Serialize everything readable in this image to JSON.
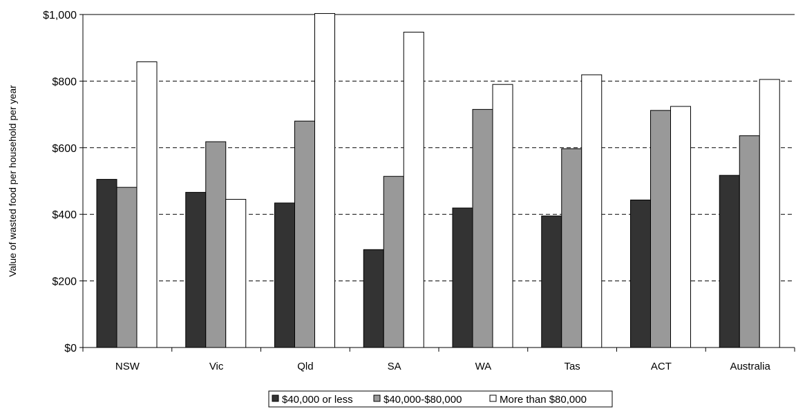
{
  "chart_data": {
    "type": "bar",
    "categories": [
      "NSW",
      "Vic",
      "Qld",
      "SA",
      "WA",
      "Tas",
      "ACT",
      "Australia"
    ],
    "series": [
      {
        "name": "$40,000 or less",
        "color": "#333333",
        "values": [
          505,
          466,
          434,
          294,
          419,
          395,
          443,
          517
        ]
      },
      {
        "name": "$40,000-$80,000",
        "color": "#999999",
        "values": [
          481,
          618,
          680,
          514,
          715,
          597,
          712,
          636
        ]
      },
      {
        "name": "More than $80,000",
        "color": "#ffffff",
        "values": [
          858,
          445,
          1003,
          947,
          790,
          819,
          724,
          805
        ]
      }
    ],
    "ylabel": "Value of wasted food per household per year",
    "xlabel": "",
    "ylim": [
      0,
      1000
    ],
    "yticks": [
      0,
      200,
      400,
      600,
      800,
      1000
    ],
    "ytick_labels": [
      "$0",
      "$200",
      "$400",
      "$600",
      "$800",
      "$1,000"
    ],
    "grid": "horizontal dashed",
    "legend_position": "bottom"
  }
}
